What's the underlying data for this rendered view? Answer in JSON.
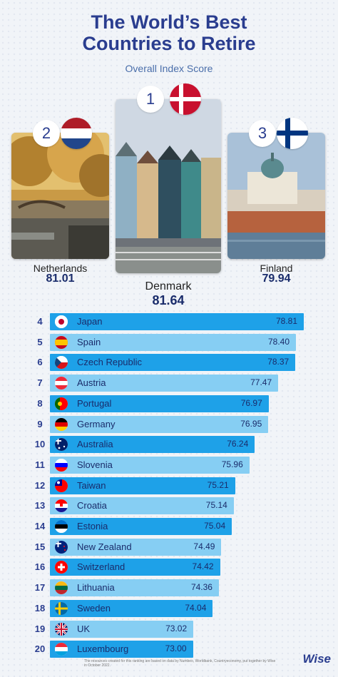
{
  "title": {
    "line1": "The World’s Best",
    "line2": "Countries to Retire"
  },
  "subtitle": "Overall Index Score",
  "podium": [
    {
      "rank": "1",
      "name": "Denmark",
      "score": "81.64"
    },
    {
      "rank": "2",
      "name": "Netherlands",
      "score": "81.01"
    },
    {
      "rank": "3",
      "name": "Finland",
      "score": "79.94"
    }
  ],
  "colors": {
    "bar_dark": "#1ea1e8",
    "bar_light": "#86cef3",
    "title": "#2a3d8f"
  },
  "chart_data": {
    "type": "bar",
    "orientation": "horizontal",
    "title": "",
    "categories": [
      "Japan",
      "Spain",
      "Czech Republic",
      "Austria",
      "Portugal",
      "Germany",
      "Australia",
      "Slovenia",
      "Taiwan",
      "Croatia",
      "Estonia",
      "New Zealand",
      "Switzerland",
      "Lithuania",
      "Sweden",
      "UK",
      "Luxembourg"
    ],
    "ranks": [
      "4",
      "5",
      "6",
      "7",
      "8",
      "9",
      "10",
      "11",
      "12",
      "13",
      "14",
      "15",
      "16",
      "17",
      "18",
      "19",
      "20"
    ],
    "values": [
      78.81,
      78.4,
      78.37,
      77.47,
      76.97,
      76.95,
      76.24,
      75.96,
      75.21,
      75.14,
      75.04,
      74.49,
      74.42,
      74.36,
      74.04,
      73.02,
      73.0
    ],
    "labels": [
      "78.81",
      "78.40",
      "78.37",
      "77.47",
      "76.97",
      "76.95",
      "76.24",
      "75.96",
      "75.21",
      "75.14",
      "75.04",
      "74.49",
      "74.42",
      "74.36",
      "74.04",
      "73.02",
      "73.00"
    ],
    "flags": [
      "japan-flag-icon",
      "spain-flag-icon",
      "czech-flag-icon",
      "austria-flag-icon",
      "portugal-flag-icon",
      "germany-flag-icon",
      "australia-flag-icon",
      "slovenia-flag-icon",
      "taiwan-flag-icon",
      "croatia-flag-icon",
      "estonia-flag-icon",
      "new-zealand-flag-icon",
      "switzerland-flag-icon",
      "lithuania-flag-icon",
      "sweden-flag-icon",
      "uk-flag-icon",
      "luxembourg-flag-icon"
    ]
  },
  "footnote": "The resources created for this ranking are based on data by Numbeo, Worldbank, Countryeconomy, put together by Wise in October 2022.",
  "logo": "Wise"
}
